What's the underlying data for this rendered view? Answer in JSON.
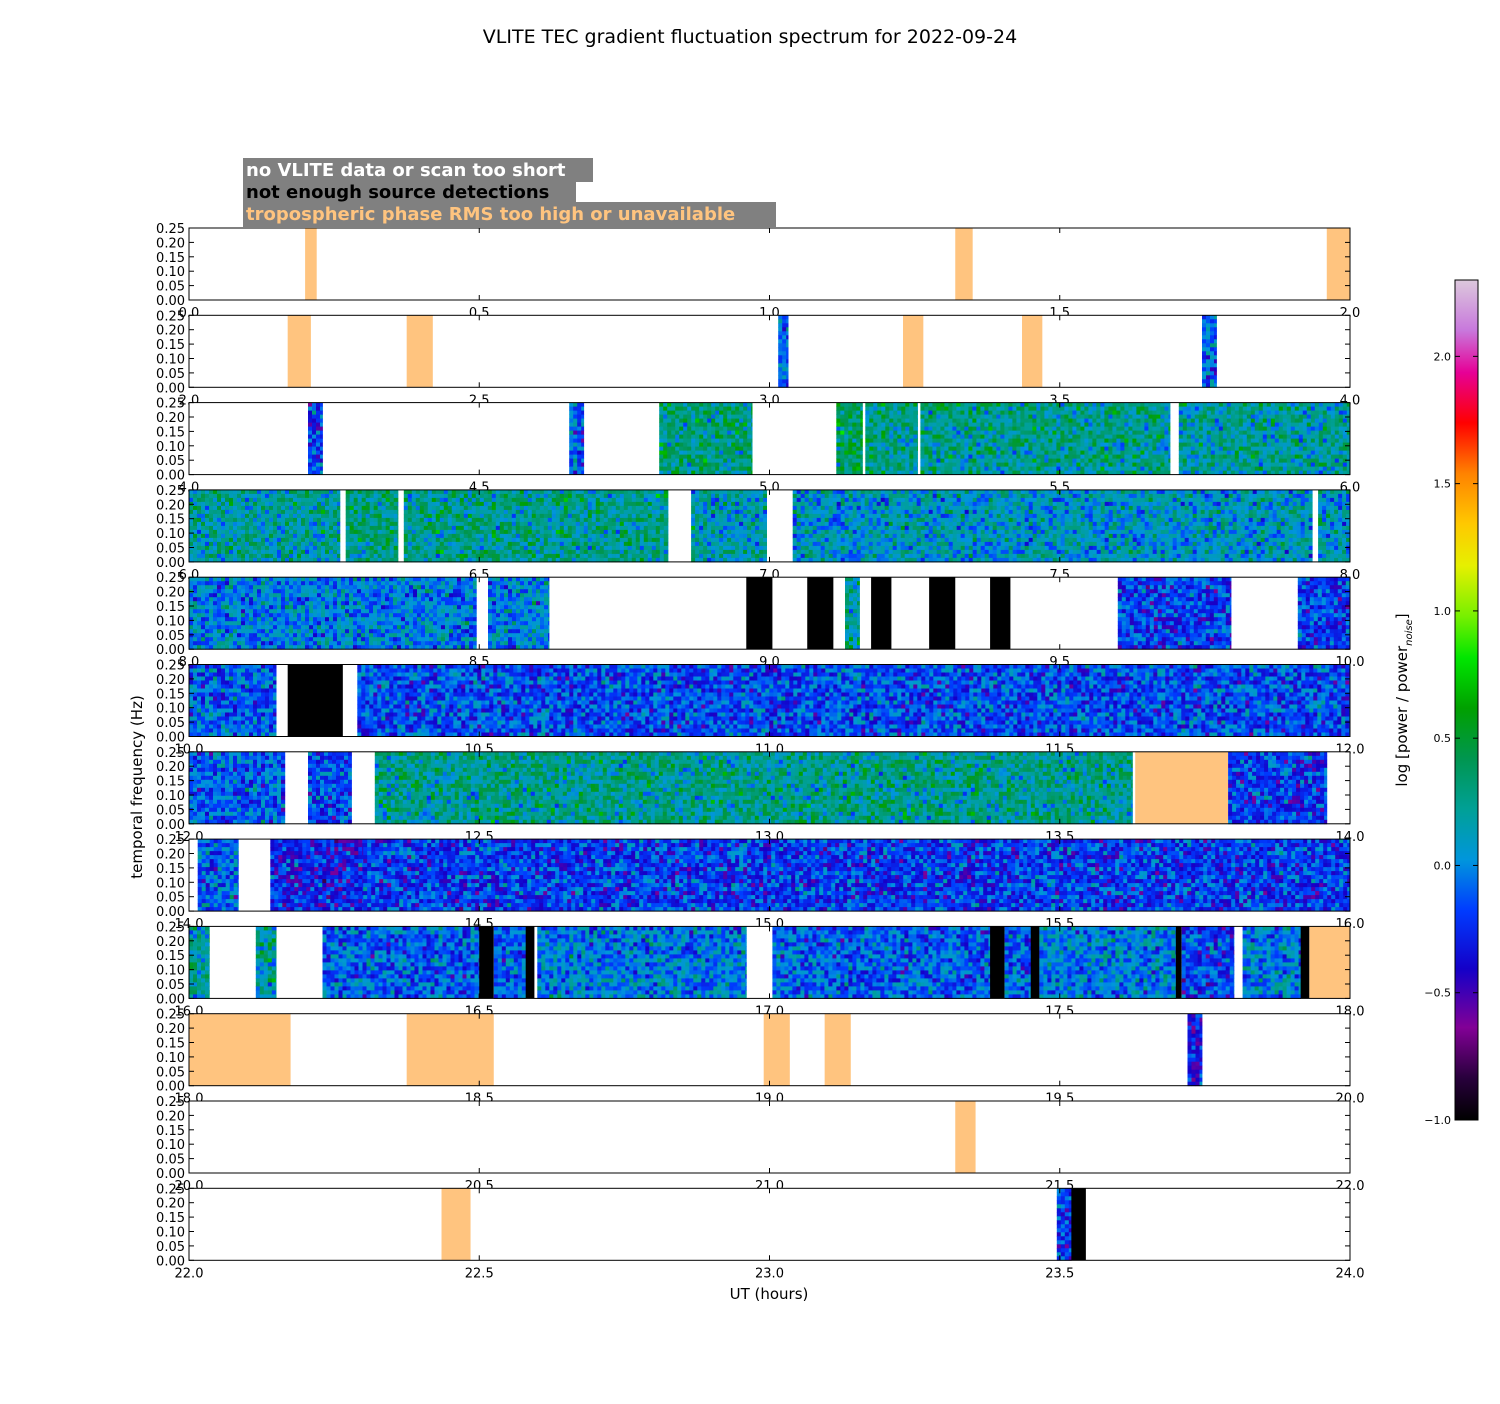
{
  "chart_data": {
    "type": "heatmap",
    "title": "VLITE TEC gradient fluctuation spectrum for 2022-09-24",
    "xlabel": "UT (hours)",
    "ylabel": "temporal frequency (Hz)",
    "ylim": [
      0,
      0.25
    ],
    "yticks": [
      "0.00",
      "0.05",
      "0.10",
      "0.15",
      "0.20",
      "0.25"
    ],
    "legend": {
      "position": "top-left",
      "entries": [
        {
          "label": "no VLITE data or scan too short",
          "color": "#ffffff"
        },
        {
          "label": "not enough source detections",
          "color": "#000000"
        },
        {
          "label": "tropospheric phase RMS too high or unavailable",
          "color": "#ffc47f"
        }
      ]
    },
    "colorbar": {
      "label": "log [power / power",
      "label_sub": "noise",
      "label_end": "]",
      "range": [
        -1.0,
        2.3
      ],
      "ticks": [
        "−1.0",
        "−0.5",
        "0.0",
        "0.5",
        "1.0",
        "1.5",
        "2.0"
      ]
    },
    "colors": {
      "tropo": "#ffc47f",
      "nodet": "#000000",
      "nodata": "#ffffff",
      "frame": "#000000"
    },
    "panels": [
      {
        "xlim": [
          0.0,
          2.0
        ],
        "ticks": [
          "0.0",
          "0.5",
          "1.0",
          "1.5",
          "2.0"
        ],
        "segments": [
          {
            "s": 0.2,
            "e": 0.22,
            "k": "tropo"
          },
          {
            "s": 1.32,
            "e": 1.35,
            "k": "tropo"
          },
          {
            "s": 1.96,
            "e": 2.0,
            "k": "tropo"
          }
        ]
      },
      {
        "xlim": [
          2.0,
          4.0
        ],
        "ticks": [
          "2.0",
          "2.5",
          "3.0",
          "3.5",
          "4.0"
        ],
        "segments": [
          {
            "s": 2.17,
            "e": 2.21,
            "k": "tropo"
          },
          {
            "s": 2.375,
            "e": 2.42,
            "k": "tropo"
          },
          {
            "s": 3.015,
            "e": 3.032,
            "k": "data",
            "m": -0.1
          },
          {
            "s": 3.23,
            "e": 3.265,
            "k": "tropo"
          },
          {
            "s": 3.435,
            "e": 3.47,
            "k": "tropo"
          },
          {
            "s": 3.745,
            "e": 3.77,
            "k": "data",
            "m": -0.1
          }
        ]
      },
      {
        "xlim": [
          4.0,
          6.0
        ],
        "ticks": [
          "4.0",
          "4.5",
          "5.0",
          "5.5",
          "6.0"
        ],
        "segments": [
          {
            "s": 4.205,
            "e": 4.23,
            "k": "data",
            "m": -0.2
          },
          {
            "s": 4.655,
            "e": 4.68,
            "k": "data",
            "m": -0.1
          },
          {
            "s": 4.81,
            "e": 4.97,
            "k": "data",
            "m": 0.3
          },
          {
            "s": 5.115,
            "e": 5.16,
            "k": "data",
            "m": 0.35
          },
          {
            "s": 5.165,
            "e": 5.255,
            "k": "data",
            "m": 0.25
          },
          {
            "s": 5.26,
            "e": 5.69,
            "k": "data",
            "m": 0.25
          },
          {
            "s": 5.705,
            "e": 6.0,
            "k": "data",
            "m": 0.2
          }
        ]
      },
      {
        "xlim": [
          6.0,
          8.0
        ],
        "ticks": [
          "6.0",
          "6.5",
          "7.0",
          "7.5",
          "8.0"
        ],
        "segments": [
          {
            "s": 6.0,
            "e": 6.26,
            "k": "data",
            "m": 0.2
          },
          {
            "s": 6.27,
            "e": 6.36,
            "k": "data",
            "m": 0.3
          },
          {
            "s": 6.37,
            "e": 6.825,
            "k": "data",
            "m": 0.25
          },
          {
            "s": 6.865,
            "e": 6.995,
            "k": "data",
            "m": 0.15
          },
          {
            "s": 7.04,
            "e": 7.935,
            "k": "data",
            "m": 0.1
          },
          {
            "s": 7.945,
            "e": 8.0,
            "k": "data",
            "m": 0.1
          }
        ]
      },
      {
        "xlim": [
          8.0,
          10.0
        ],
        "ticks": [
          "8.0",
          "8.5",
          "9.0",
          "9.5",
          "10.0"
        ],
        "segments": [
          {
            "s": 8.0,
            "e": 8.495,
            "k": "data",
            "m": 0.0
          },
          {
            "s": 8.515,
            "e": 8.62,
            "k": "data",
            "m": 0.0
          },
          {
            "s": 8.96,
            "e": 9.005,
            "k": "nodet"
          },
          {
            "s": 9.065,
            "e": 9.11,
            "k": "nodet"
          },
          {
            "s": 9.13,
            "e": 9.155,
            "k": "data",
            "m": 0.2
          },
          {
            "s": 9.175,
            "e": 9.21,
            "k": "nodet"
          },
          {
            "s": 9.275,
            "e": 9.32,
            "k": "nodet"
          },
          {
            "s": 9.38,
            "e": 9.415,
            "k": "nodet"
          },
          {
            "s": 9.6,
            "e": 9.795,
            "k": "data",
            "m": -0.2
          },
          {
            "s": 9.91,
            "e": 10.0,
            "k": "data",
            "m": -0.2
          }
        ]
      },
      {
        "xlim": [
          10.0,
          12.0
        ],
        "ticks": [
          "10.0",
          "10.5",
          "11.0",
          "11.5",
          "12.0"
        ],
        "segments": [
          {
            "s": 10.0,
            "e": 10.15,
            "k": "data",
            "m": -0.1
          },
          {
            "s": 10.17,
            "e": 10.265,
            "k": "nodet"
          },
          {
            "s": 10.29,
            "e": 12.0,
            "k": "data",
            "m": -0.15
          }
        ]
      },
      {
        "xlim": [
          12.0,
          14.0
        ],
        "ticks": [
          "12.0",
          "12.5",
          "13.0",
          "13.5",
          "14.0"
        ],
        "segments": [
          {
            "s": 12.0,
            "e": 12.165,
            "k": "data",
            "m": -0.1
          },
          {
            "s": 12.205,
            "e": 12.28,
            "k": "data",
            "m": -0.15
          },
          {
            "s": 12.32,
            "e": 13.625,
            "k": "data",
            "m": 0.25
          },
          {
            "s": 13.63,
            "e": 13.79,
            "k": "tropo"
          },
          {
            "s": 13.79,
            "e": 13.96,
            "k": "data",
            "m": -0.2
          }
        ]
      },
      {
        "xlim": [
          14.0,
          16.0
        ],
        "ticks": [
          "14.0",
          "14.5",
          "15.0",
          "15.5",
          "16.0"
        ],
        "segments": [
          {
            "s": 14.015,
            "e": 14.085,
            "k": "data",
            "m": -0.1
          },
          {
            "s": 14.14,
            "e": 14.3,
            "k": "data",
            "m": -0.3
          },
          {
            "s": 14.3,
            "e": 16.0,
            "k": "data",
            "m": -0.2
          }
        ]
      },
      {
        "xlim": [
          16.0,
          18.0
        ],
        "ticks": [
          "16.0",
          "16.5",
          "17.0",
          "17.5",
          "18.0"
        ],
        "segments": [
          {
            "s": 16.0,
            "e": 16.035,
            "k": "data",
            "m": 0.2
          },
          {
            "s": 16.115,
            "e": 16.15,
            "k": "data",
            "m": 0.2
          },
          {
            "s": 16.23,
            "e": 16.5,
            "k": "data",
            "m": -0.1
          },
          {
            "s": 16.5,
            "e": 16.525,
            "k": "nodet"
          },
          {
            "s": 16.525,
            "e": 16.58,
            "k": "data",
            "m": -0.1
          },
          {
            "s": 16.58,
            "e": 16.595,
            "k": "nodet"
          },
          {
            "s": 16.6,
            "e": 16.96,
            "k": "data",
            "m": 0.0
          },
          {
            "s": 17.005,
            "e": 17.38,
            "k": "data",
            "m": -0.1
          },
          {
            "s": 17.38,
            "e": 17.405,
            "k": "nodet"
          },
          {
            "s": 17.405,
            "e": 17.45,
            "k": "data",
            "m": -0.1
          },
          {
            "s": 17.45,
            "e": 17.465,
            "k": "nodet"
          },
          {
            "s": 17.465,
            "e": 17.7,
            "k": "data",
            "m": 0.0
          },
          {
            "s": 17.7,
            "e": 17.71,
            "k": "nodet"
          },
          {
            "s": 17.71,
            "e": 17.8,
            "k": "data",
            "m": -0.2
          },
          {
            "s": 17.815,
            "e": 17.915,
            "k": "data",
            "m": 0.0
          },
          {
            "s": 17.915,
            "e": 17.93,
            "k": "nodet"
          },
          {
            "s": 17.93,
            "e": 18.0,
            "k": "tropo"
          }
        ]
      },
      {
        "xlim": [
          18.0,
          20.0
        ],
        "ticks": [
          "18.0",
          "18.5",
          "19.0",
          "19.5",
          "20.0"
        ],
        "segments": [
          {
            "s": 18.0,
            "e": 18.175,
            "k": "tropo"
          },
          {
            "s": 18.375,
            "e": 18.525,
            "k": "tropo"
          },
          {
            "s": 18.99,
            "e": 19.035,
            "k": "tropo"
          },
          {
            "s": 19.095,
            "e": 19.14,
            "k": "tropo"
          },
          {
            "s": 19.72,
            "e": 19.745,
            "k": "data",
            "m": -0.3
          }
        ]
      },
      {
        "xlim": [
          20.0,
          22.0
        ],
        "ticks": [
          "20.0",
          "20.5",
          "21.0",
          "21.5",
          "22.0"
        ],
        "segments": [
          {
            "s": 21.32,
            "e": 21.355,
            "k": "tropo"
          }
        ]
      },
      {
        "xlim": [
          22.0,
          24.0
        ],
        "ticks": [
          "22.0",
          "22.5",
          "23.0",
          "23.5",
          "24.0"
        ],
        "segments": [
          {
            "s": 22.435,
            "e": 22.485,
            "k": "tropo"
          },
          {
            "s": 23.495,
            "e": 23.52,
            "k": "data",
            "m": -0.2
          },
          {
            "s": 23.52,
            "e": 23.545,
            "k": "nodet"
          }
        ]
      }
    ]
  }
}
